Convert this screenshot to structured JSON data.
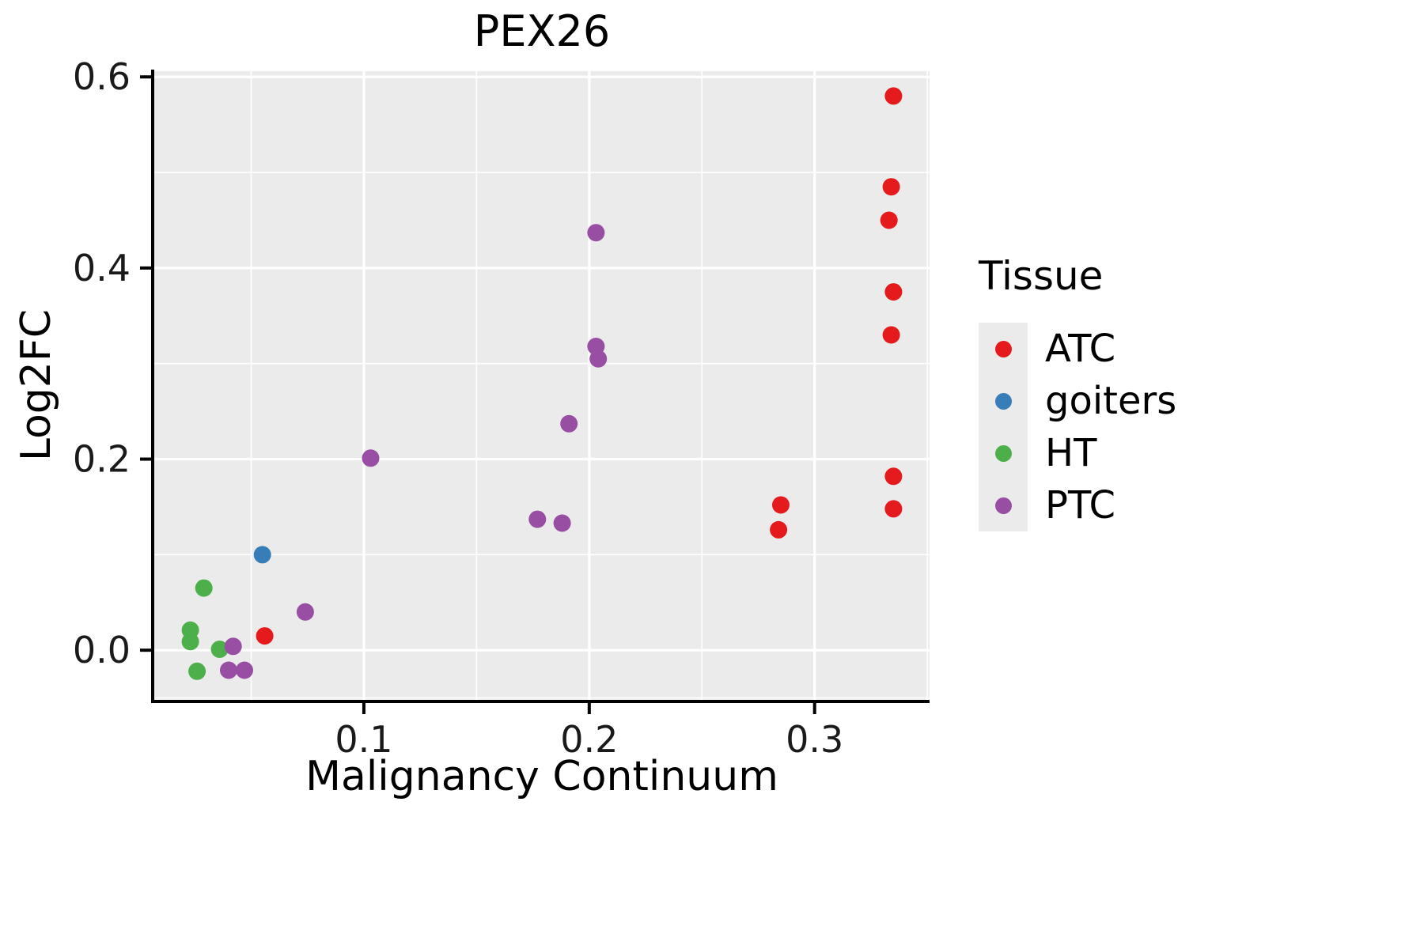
{
  "chart_data": {
    "type": "scatter",
    "title": "PEX26",
    "xlabel": "Malignancy Continuum",
    "ylabel": "Log2FC",
    "legend_title": "Tissue",
    "legend_position": "right",
    "grid": true,
    "panel_bg": "#EBEBEB",
    "grid_color": "#FFFFFF",
    "axis_color": "#000000",
    "xlim": [
      0.007,
      0.351
    ],
    "ylim": [
      -0.052,
      0.606
    ],
    "x_ticks": [
      0.1,
      0.2,
      0.3
    ],
    "x_tick_labels": [
      "0.1",
      "0.2",
      "0.3"
    ],
    "y_ticks": [
      0.0,
      0.2,
      0.4,
      0.6
    ],
    "y_tick_labels": [
      "0.0",
      "0.2",
      "0.4",
      "0.6"
    ],
    "x_minor_ticks": [
      0.05,
      0.15,
      0.25,
      0.35
    ],
    "y_minor_ticks": [
      -0.05,
      0.1,
      0.3,
      0.5
    ],
    "point_radius": 11,
    "series": [
      {
        "name": "ATC",
        "color": "#E41A1C",
        "points": [
          [
            0.335,
            0.58
          ],
          [
            0.334,
            0.485
          ],
          [
            0.333,
            0.45
          ],
          [
            0.335,
            0.375
          ],
          [
            0.334,
            0.33
          ],
          [
            0.335,
            0.182
          ],
          [
            0.335,
            0.148
          ],
          [
            0.285,
            0.152
          ],
          [
            0.284,
            0.126
          ],
          [
            0.056,
            0.015
          ]
        ]
      },
      {
        "name": "goiters",
        "color": "#377EB8",
        "points": [
          [
            0.055,
            0.1
          ]
        ]
      },
      {
        "name": "HT",
        "color": "#4DAF4A",
        "points": [
          [
            0.029,
            0.065
          ],
          [
            0.023,
            0.021
          ],
          [
            0.023,
            0.009
          ],
          [
            0.036,
            0.001
          ],
          [
            0.026,
            -0.022
          ]
        ]
      },
      {
        "name": "PTC",
        "color": "#984EA3",
        "points": [
          [
            0.203,
            0.437
          ],
          [
            0.203,
            0.318
          ],
          [
            0.204,
            0.305
          ],
          [
            0.191,
            0.237
          ],
          [
            0.103,
            0.201
          ],
          [
            0.177,
            0.137
          ],
          [
            0.188,
            0.133
          ],
          [
            0.074,
            0.04
          ],
          [
            0.042,
            0.004
          ],
          [
            0.04,
            -0.021
          ],
          [
            0.047,
            -0.021
          ]
        ]
      }
    ]
  }
}
